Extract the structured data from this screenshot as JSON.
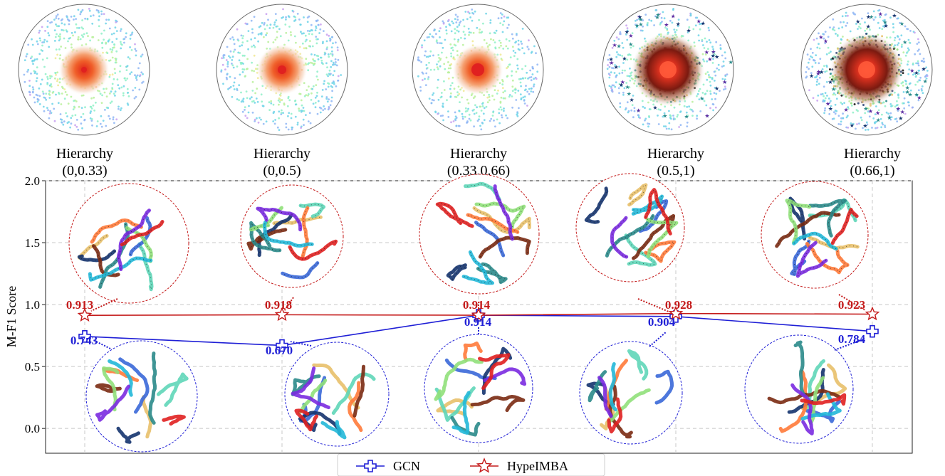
{
  "chart_data": {
    "type": "line",
    "categories": [
      "Hierarchy\n(0,0.33)",
      "Hierarchy\n(0,0.5)",
      "Hierarchy\n(0.33,0.66)",
      "Hierarchy\n(0.5,1)",
      "Hierarchy\n(0.66,1)"
    ],
    "category_lines": [
      [
        "Hierarchy",
        "(0,0.33)"
      ],
      [
        "Hierarchy",
        "(0,0.5)"
      ],
      [
        "Hierarchy",
        "(0.33,0.66)"
      ],
      [
        "Hierarchy",
        "(0.5,1)"
      ],
      [
        "Hierarchy",
        "(0.66,1)"
      ]
    ],
    "ylabel": "M-F1 Score",
    "xlabel": "",
    "title": "",
    "ylim": [
      -0.2,
      2.0
    ],
    "yticks": [
      "0.0",
      "0.5",
      "1.0",
      "1.5",
      "2.0"
    ],
    "ytick_values": [
      0.0,
      0.5,
      1.0,
      1.5,
      2.0
    ],
    "grid": true,
    "legend_position": "bottom-center",
    "series": [
      {
        "name": "GCN",
        "marker": "plus",
        "color": "#1f1fd6",
        "values": [
          0.743,
          0.67,
          0.914,
          0.904,
          0.784
        ],
        "labels": [
          "0.743",
          "0.670",
          "0.914",
          "0.904",
          "0.784"
        ]
      },
      {
        "name": "HypeIMBA",
        "marker": "star",
        "color": "#c41a1a",
        "values": [
          0.913,
          0.918,
          0.914,
          0.928,
          0.923
        ],
        "labels": [
          "0.913",
          "0.918",
          "0.914",
          "0.928",
          "0.923"
        ]
      }
    ]
  },
  "colors": {
    "gcn": "#1f1fd6",
    "hypeimba": "#c41a1a",
    "grid": "#c8c8c8",
    "embedding_palette": [
      "#c8a0f0",
      "#8fb6f5",
      "#6fd4e8",
      "#8ff0c8",
      "#b8f09a",
      "#f0e890",
      "#f5b070",
      "#f07a50",
      "#e03a2a"
    ],
    "tsne_palette": [
      "#e8c06a",
      "#5fd6b8",
      "#3a68d8",
      "#14336e",
      "#ff7a3a",
      "#7a2a12",
      "#2a8a8a",
      "#90e07a",
      "#22b8d8",
      "#7a2ae0",
      "#e02020",
      "#111111"
    ]
  }
}
